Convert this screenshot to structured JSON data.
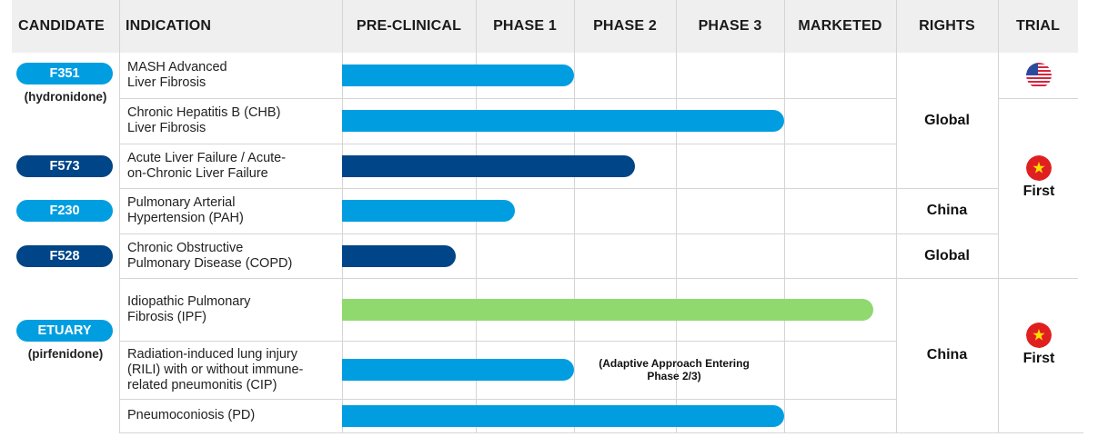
{
  "chart_data": {
    "type": "table",
    "columns": [
      "CANDIDATE",
      "INDICATION",
      "PRE-CLINICAL",
      "PHASE 1",
      "PHASE 2",
      "PHASE 3",
      "MARKETED",
      "RIGHTS",
      "TRIAL"
    ],
    "stages": [
      "PRE-CLINICAL",
      "PHASE 1",
      "PHASE 2",
      "PHASE 3",
      "MARKETED"
    ],
    "candidates": [
      {
        "name": "F351",
        "alias": "(hydronidone)",
        "color": "#009ee0"
      },
      {
        "name": "F573",
        "alias": "",
        "color": "#004587"
      },
      {
        "name": "F230",
        "alias": "",
        "color": "#009ee0"
      },
      {
        "name": "F528",
        "alias": "",
        "color": "#004587"
      },
      {
        "name": "ETUARY",
        "alias": "(pirfenidone)",
        "color": "#009ee0"
      }
    ],
    "rows": [
      {
        "candidate": "F351",
        "indication": [
          "MASH Advanced",
          "Liver Fibrosis"
        ],
        "progress_stages": 2.0,
        "bar_color": "#009ee0"
      },
      {
        "candidate": "F351",
        "indication": [
          "Chronic Hepatitis B (CHB)",
          "Liver Fibrosis"
        ],
        "progress_stages": 4.0,
        "bar_color": "#009ee0"
      },
      {
        "candidate": "F573",
        "indication": [
          "Acute Liver Failure / Acute-",
          "on-Chronic Liver Failure"
        ],
        "progress_stages": 2.6,
        "bar_color": "#004587"
      },
      {
        "candidate": "F230",
        "indication": [
          "Pulmonary Arterial",
          "Hypertension (PAH)"
        ],
        "progress_stages": 1.4,
        "bar_color": "#009ee0"
      },
      {
        "candidate": "F528",
        "indication": [
          "Chronic Obstructive",
          "Pulmonary Disease (COPD)"
        ],
        "progress_stages": 0.85,
        "bar_color": "#004587"
      },
      {
        "candidate": "ETUARY",
        "indication": [
          "Idiopathic Pulmonary",
          "Fibrosis (IPF)"
        ],
        "progress_stages": 4.8,
        "bar_color": "#8fd96f"
      },
      {
        "candidate": "ETUARY",
        "indication": [
          "Radiation-induced lung injury",
          "(RILI) with or without immune-",
          "related pneumonitis (CIP)"
        ],
        "progress_stages": 2.0,
        "bar_color": "#009ee0",
        "note": [
          "(Adaptive Approach Entering",
          "Phase 2/3)"
        ]
      },
      {
        "candidate": "ETUARY",
        "indication": [
          "Pneumoconiosis (PD)"
        ],
        "progress_stages": 4.0,
        "bar_color": "#009ee0"
      }
    ],
    "rights": [
      {
        "label": "Global",
        "rows": [
          0,
          1,
          2
        ]
      },
      {
        "label": "China",
        "rows": [
          3
        ]
      },
      {
        "label": "Global",
        "rows": [
          4
        ]
      },
      {
        "label": "China",
        "rows": [
          5,
          6,
          7
        ]
      }
    ],
    "trial": [
      {
        "flag": "us-flag-icon",
        "label": "",
        "rows": [
          0
        ]
      },
      {
        "flag": "china-flag-icon",
        "label": "First",
        "rows": [
          1,
          2,
          3,
          4
        ]
      },
      {
        "flag": "china-flag-icon",
        "label": "First",
        "rows": [
          5,
          6,
          7
        ]
      }
    ]
  }
}
